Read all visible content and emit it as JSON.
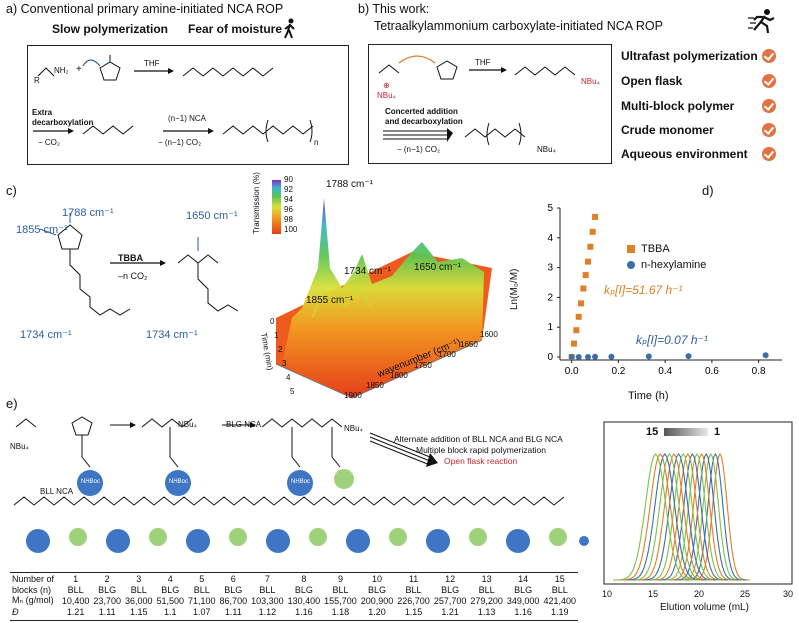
{
  "panel_a": {
    "label": "a)",
    "title": "Conventional primary amine-initiated NCA ROP",
    "slow": "Slow polymerization",
    "moisture": "Fear of moisture",
    "thf": "THF",
    "extra": "Extra",
    "decarb": "decarboxylation",
    "co2": "− CO₂",
    "n1nca": "(n−1) NCA",
    "n1co2": "− (n−1) CO₂",
    "nh2": "NH₂",
    "r": "R",
    "rp": "R'",
    "n": "n"
  },
  "panel_b": {
    "label": "b)",
    "title1": "This work:",
    "title2": "Tetraalkylammonium carboxylate-initiated NCA ROP",
    "thf": "THF",
    "nbu4": "NBu₄",
    "concerted1": "Concerted addition",
    "concerted2": "and decarboxylation",
    "n1co2": "− (n−1) CO₂",
    "advantages": [
      "Ultrafast polymerization",
      "Open flask",
      "Multi-block polymer",
      "Crude monomer",
      "Aqueous environment"
    ]
  },
  "panel_c": {
    "label": "c)",
    "w1855": "1855 cm⁻¹",
    "w1788": "1788 cm⁻¹",
    "w1650": "1650 cm⁻¹",
    "w1734a": "1734 cm⁻¹",
    "w1734b": "1734 cm⁻¹",
    "tbba": "TBBA",
    "nco2": "–n CO₂",
    "transmission": "Transmission (%)",
    "scale": [
      "90",
      "92",
      "94",
      "96",
      "98",
      "100"
    ],
    "peak1788": "1788 cm⁻¹",
    "peak1734": "1734 cm⁻¹",
    "peak1650": "1650 cm⁻¹",
    "peak1855": "1855 cm⁻¹",
    "wavenumber": "wavenumber (cm⁻¹)",
    "wn_ticks": [
      "1900",
      "1850",
      "1800",
      "1750",
      "1700",
      "1650",
      "1600"
    ],
    "time_label": "Time (min)",
    "time_ticks": [
      "0",
      "1",
      "2",
      "3",
      "4",
      "5"
    ]
  },
  "chart_data": {
    "type": "scatter",
    "panel": "d)",
    "xlabel": "Time (h)",
    "ylabel": "Ln(M₀/M)",
    "xlim": [
      -0.05,
      0.9
    ],
    "ylim": [
      -0.1,
      5
    ],
    "x_ticks": [
      "0.0",
      "0.2",
      "0.4",
      "0.6",
      "0.8"
    ],
    "y_ticks": [
      "0",
      "1",
      "2",
      "3",
      "4",
      "5"
    ],
    "series": [
      {
        "name": "TBBA",
        "color": "#e07f26",
        "marker": "square",
        "x": [
          0.0,
          0.01,
          0.02,
          0.03,
          0.04,
          0.05,
          0.06,
          0.07,
          0.08,
          0.09,
          0.1
        ],
        "y": [
          0.0,
          0.45,
          0.9,
          1.35,
          1.8,
          2.3,
          2.75,
          3.2,
          3.7,
          4.2,
          4.7
        ]
      },
      {
        "name": "n-hexylamine",
        "color": "#3d6ea8",
        "marker": "circle",
        "x": [
          0.0,
          0.03,
          0.07,
          0.1,
          0.17,
          0.33,
          0.5,
          0.83
        ],
        "y": [
          0.0,
          0.0,
          0.0,
          0.01,
          0.01,
          0.02,
          0.03,
          0.06
        ]
      }
    ],
    "annotations": [
      "kₚ[I]=51.67 h⁻¹",
      "kₚ[I]=0.07 h⁻¹"
    ]
  },
  "panel_e": {
    "label": "e)",
    "bll_nca": "BLL NCA",
    "blg_nca": "BLG NCA",
    "alt1": "Alternate addition of BLL NCA and BLG NCA",
    "alt2": "Multiple block rapid polymerization",
    "alt3": "Open flask reaction",
    "nhboc": "NHBoc",
    "nbu4": "NBu₄",
    "table": {
      "h1": "Number of",
      "h2": "blocks (n)",
      "blocks": [
        "1",
        "2",
        "3",
        "4",
        "5",
        "6",
        "7",
        "8",
        "9",
        "10",
        "11",
        "12",
        "13",
        "14",
        "15"
      ],
      "monomer": [
        "BLL",
        "BLG",
        "BLL",
        "BLG",
        "BLL",
        "BLG",
        "BLL",
        "BLG",
        "BLL",
        "BLG",
        "BLL",
        "BLG",
        "BLL",
        "BLG",
        "BLL"
      ],
      "mn_label": "Mₙ (g/mol)",
      "mn": [
        "10,400",
        "23,700",
        "36,000",
        "51,500",
        "71,100",
        "86,700",
        "103,300",
        "130,400",
        "155,700",
        "200,900",
        "226,700",
        "257,700",
        "279,200",
        "349,000",
        "421,400"
      ],
      "d_label": "Đ",
      "d": [
        "1.21",
        "1.11",
        "1.15",
        "1.1",
        "1.07",
        "1.11",
        "1.12",
        "1.16",
        "1.18",
        "1.20",
        "1.15",
        "1.21",
        "1.13",
        "1.16",
        "1.19"
      ]
    }
  },
  "sec_chart": {
    "xlabel": "Elution volume (mL)",
    "x_ticks": [
      "10",
      "15",
      "20",
      "25",
      "30"
    ],
    "label_15": "15",
    "label_1": "1"
  }
}
